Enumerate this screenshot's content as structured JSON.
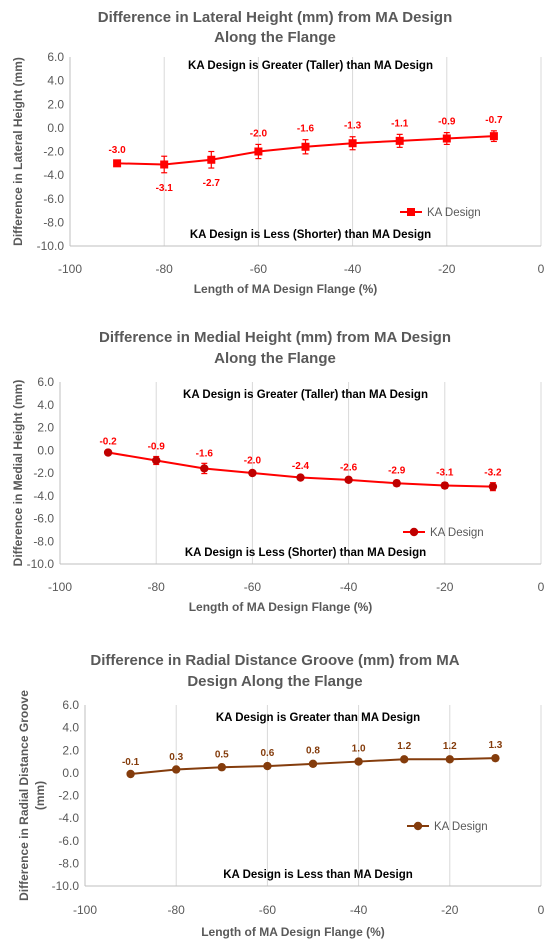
{
  "chart_data": [
    {
      "type": "line",
      "title_lines": [
        "Difference in Lateral Height (mm) from MA Design",
        "Along the Flange"
      ],
      "xlabel": "Length of MA Design Flange (%)",
      "ylabel_lines": [
        "Difference in Lateral Height (mm)"
      ],
      "xlim": [
        -100,
        0
      ],
      "ylim": [
        -10,
        6
      ],
      "x_ticks": [
        -100,
        -80,
        -60,
        -40,
        -20,
        0
      ],
      "y_ticks": [
        6,
        4,
        2,
        0,
        -2,
        -4,
        -6,
        -8,
        -10
      ],
      "x_tick_labels": [
        "-100",
        "-80",
        "-60",
        "-40",
        "-20",
        "0"
      ],
      "y_tick_labels": [
        "6.0",
        "4.0",
        "2.0",
        "0.0",
        "-2.0",
        "-4.0",
        "-6.0",
        "-8.0",
        "-10.0"
      ],
      "grid": "vertical",
      "legend_position": "lower-right",
      "annotation_top": "KA Design is Greater (Taller) than MA Design",
      "annotation_bottom": "KA Design is Less (Shorter) than MA Design",
      "colors": {
        "line": "#ff0000",
        "marker": "#ff0000",
        "label": "#ff0000"
      },
      "marker": "square",
      "series": [
        {
          "name": "KA Design",
          "x": [
            -90,
            -80,
            -70,
            -60,
            -50,
            -40,
            -30,
            -20,
            -10
          ],
          "y": [
            -3.0,
            -3.1,
            -2.7,
            -2.0,
            -1.6,
            -1.3,
            -1.1,
            -0.9,
            -0.7
          ],
          "error": [
            0.2,
            0.7,
            0.7,
            0.6,
            0.6,
            0.55,
            0.55,
            0.5,
            0.45
          ],
          "data_labels": [
            "-3.0",
            "-3.1",
            "-2.7",
            "-2.0",
            "-1.6",
            "-1.3",
            "-1.1",
            "-0.9",
            "-0.7"
          ],
          "label_side": [
            "above",
            "below",
            "below",
            "above",
            "above",
            "above",
            "above",
            "above",
            "above"
          ]
        }
      ]
    },
    {
      "type": "line",
      "title_lines": [
        "Difference in Medial Height (mm) from MA Design",
        "Along the Flange"
      ],
      "xlabel": "Length of MA Design Flange (%)",
      "ylabel_lines": [
        "Difference in Medial Height (mm)"
      ],
      "xlim": [
        -100,
        0
      ],
      "ylim": [
        -10,
        6
      ],
      "x_ticks": [
        -100,
        -80,
        -60,
        -40,
        -20,
        0
      ],
      "y_ticks": [
        6,
        4,
        2,
        0,
        -2,
        -4,
        -6,
        -8,
        -10
      ],
      "x_tick_labels": [
        "-100",
        "-80",
        "-60",
        "-40",
        "-20",
        "0"
      ],
      "y_tick_labels": [
        "6.0",
        "4.0",
        "2.0",
        "0.0",
        "-2.0",
        "-4.0",
        "-6.0",
        "-8.0",
        "-10.0"
      ],
      "grid": "vertical",
      "legend_position": "lower-right",
      "annotation_top": "KA Design is Greater (Taller) than MA Design",
      "annotation_bottom": "KA Design is Less (Shorter) than MA Design",
      "colors": {
        "line": "#ff0000",
        "marker": "#c00000",
        "label": "#ff0000"
      },
      "marker": "circle",
      "series": [
        {
          "name": "KA Design",
          "x": [
            -90,
            -80,
            -70,
            -60,
            -50,
            -40,
            -30,
            -20,
            -10
          ],
          "y": [
            -0.2,
            -0.9,
            -1.6,
            -2.0,
            -2.4,
            -2.6,
            -2.9,
            -3.1,
            -3.2
          ],
          "error": [
            0.1,
            0.35,
            0.45,
            0.2,
            0.15,
            0.2,
            0.25,
            0.25,
            0.35
          ],
          "data_labels": [
            "-0.2",
            "-0.9",
            "-1.6",
            "-2.0",
            "-2.4",
            "-2.6",
            "-2.9",
            "-3.1",
            "-3.2"
          ],
          "label_side": [
            "above",
            "above",
            "above",
            "above",
            "above",
            "above",
            "above",
            "above",
            "above"
          ]
        }
      ]
    },
    {
      "type": "line",
      "title_lines": [
        "Difference in Radial Distance Groove (mm) from MA",
        "Design Along the Flange"
      ],
      "xlabel": "Length of MA Design Flange (%)",
      "ylabel_lines": [
        "Difference in Radial Distance Groove",
        "(mm)"
      ],
      "xlim": [
        -100,
        0
      ],
      "ylim": [
        -10,
        6
      ],
      "x_ticks": [
        -100,
        -80,
        -60,
        -40,
        -20,
        0
      ],
      "y_ticks": [
        6,
        4,
        2,
        0,
        -2,
        -4,
        -6,
        -8,
        -10
      ],
      "x_tick_labels": [
        "-100",
        "-80",
        "-60",
        "-40",
        "-20",
        "0"
      ],
      "y_tick_labels": [
        "6.0",
        "4.0",
        "2.0",
        "0.0",
        "-2.0",
        "-4.0",
        "-6.0",
        "-8.0",
        "-10.0"
      ],
      "grid": "vertical",
      "legend_position": "lower-right",
      "annotation_top": "KA Design is Greater than MA Design",
      "annotation_bottom": "KA Design is Less than MA Design",
      "colors": {
        "line": "#843c0c",
        "marker": "#843c0c",
        "label": "#843c0c"
      },
      "marker": "circle",
      "series": [
        {
          "name": "KA Design",
          "x": [
            -90,
            -80,
            -70,
            -60,
            -50,
            -40,
            -30,
            -20,
            -10
          ],
          "y": [
            -0.1,
            0.3,
            0.5,
            0.6,
            0.8,
            1.0,
            1.2,
            1.2,
            1.3
          ],
          "error": [
            0.1,
            0.15,
            0.15,
            0.2,
            0.2,
            0.2,
            0.2,
            0.2,
            0.2
          ],
          "data_labels": [
            "-0.1",
            "0.3",
            "0.5",
            "0.6",
            "0.8",
            "1.0",
            "1.2",
            "1.2",
            "1.3"
          ],
          "label_side": [
            "above",
            "above",
            "above",
            "above",
            "above",
            "above",
            "above",
            "above",
            "above"
          ]
        }
      ]
    }
  ]
}
